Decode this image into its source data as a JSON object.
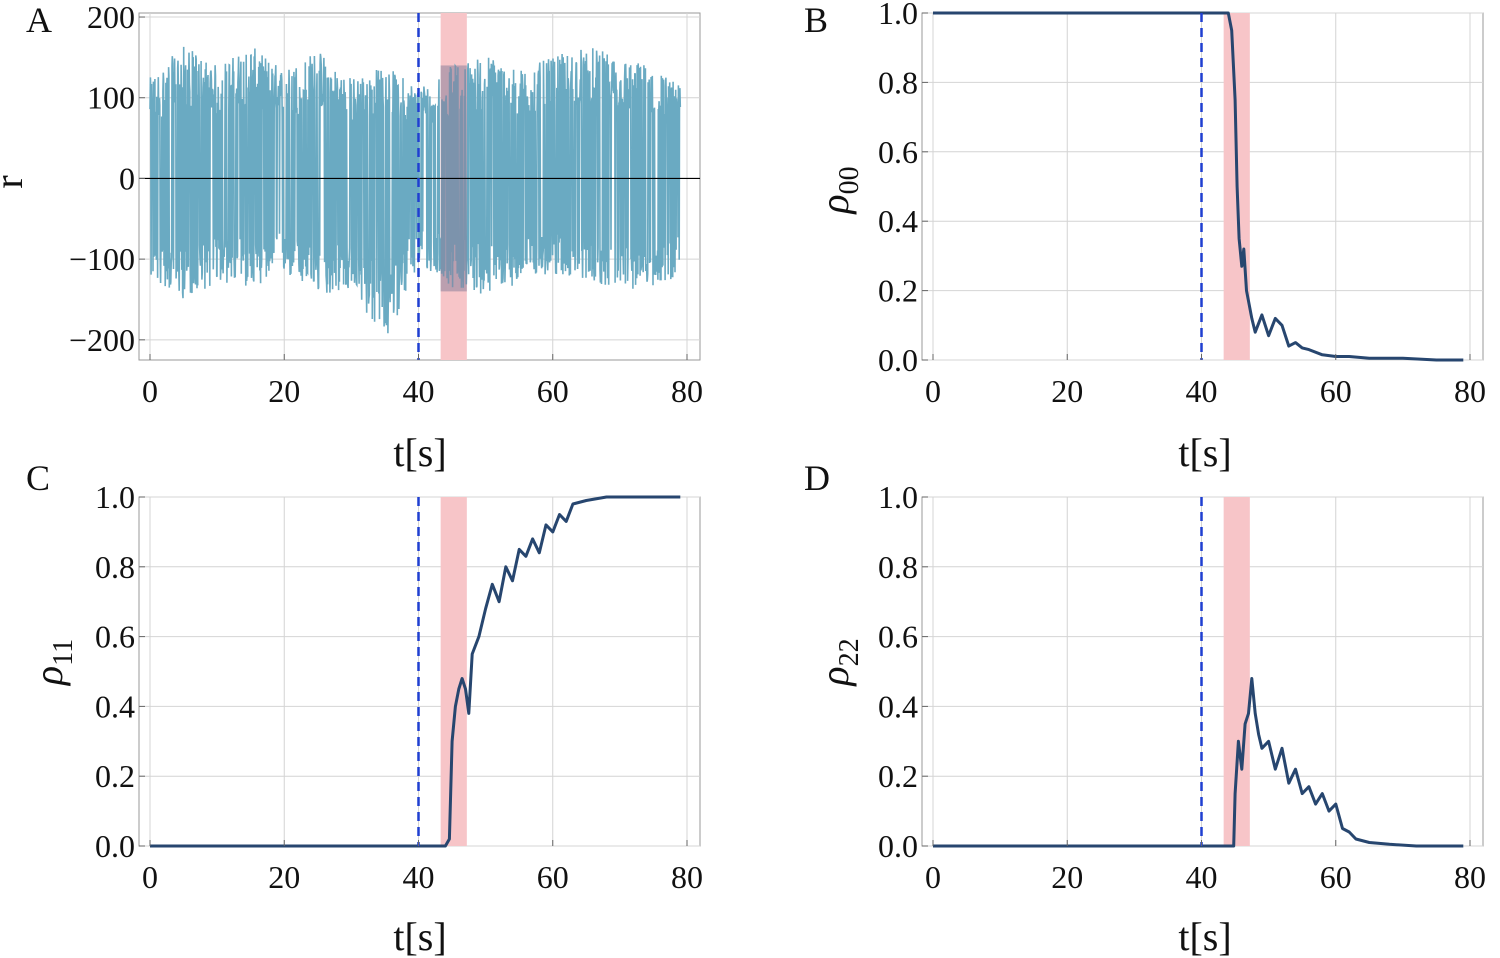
{
  "colors": {
    "signal": "#6aaac2",
    "density": "#27466f",
    "marker": "#1f3fd1",
    "band": "#f7c5c8",
    "grid": "#d4d4d4",
    "frame": "#9a9a9a"
  },
  "chart_data": [
    {
      "panel": "A",
      "type": "line",
      "ylabel": "r",
      "xlabel": "t[s]",
      "xlim": [
        0,
        80
      ],
      "ylim": [
        -225,
        205
      ],
      "x_ticks": [
        0,
        20,
        40,
        60,
        80
      ],
      "y_ticks": [
        -200,
        -100,
        0,
        100,
        200
      ],
      "y_tick_labels": [
        "−200",
        "−100",
        "0",
        "100",
        "200"
      ],
      "grid": true,
      "zero_line": true,
      "marker_time": 40,
      "band": [
        43.3,
        47.2
      ],
      "series": [
        {
          "kind": "noise-envelope",
          "x": [
            0,
            5,
            10,
            15,
            20,
            25,
            30,
            35,
            40,
            45,
            50,
            55,
            60,
            65,
            70,
            75,
            79
          ],
          "upper": [
            125,
            165,
            140,
            165,
            135,
            160,
            125,
            140,
            115,
            140,
            155,
            135,
            150,
            165,
            150,
            140,
            115
          ],
          "lower": [
            -125,
            -150,
            -130,
            -135,
            -120,
            -145,
            -140,
            -205,
            -110,
            -135,
            -145,
            -130,
            -120,
            -125,
            -140,
            -135,
            -120
          ]
        }
      ]
    },
    {
      "panel": "B",
      "type": "line",
      "ylabel": "ρ",
      "ylabel_sub": "00",
      "xlabel": "t[s]",
      "xlim": [
        0,
        80
      ],
      "ylim": [
        0,
        1
      ],
      "x_ticks": [
        0,
        20,
        40,
        60,
        80
      ],
      "y_ticks": [
        0,
        0.2,
        0.4,
        0.6,
        0.8,
        1.0
      ],
      "y_tick_labels": [
        "0.0",
        "0.2",
        "0.4",
        "0.6",
        "0.8",
        "1.0"
      ],
      "grid": true,
      "marker_time": 40,
      "band": [
        43.3,
        47.2
      ],
      "series": [
        {
          "x": [
            0,
            40,
            43,
            44,
            44.5,
            45,
            45.3,
            45.6,
            46,
            46.3,
            46.7,
            47,
            47.5,
            48,
            49,
            50,
            51,
            52,
            53,
            54,
            55,
            56,
            58,
            60,
            62,
            65,
            70,
            75,
            79
          ],
          "y": [
            1.0,
            1.0,
            1.0,
            1.0,
            0.95,
            0.75,
            0.5,
            0.35,
            0.27,
            0.32,
            0.2,
            0.17,
            0.12,
            0.08,
            0.13,
            0.07,
            0.12,
            0.1,
            0.04,
            0.05,
            0.035,
            0.03,
            0.015,
            0.01,
            0.01,
            0.005,
            0.005,
            0.0,
            0.0
          ]
        }
      ]
    },
    {
      "panel": "C",
      "type": "line",
      "ylabel": "ρ",
      "ylabel_sub": "11",
      "xlabel": "t[s]",
      "xlim": [
        0,
        80
      ],
      "ylim": [
        0,
        1
      ],
      "x_ticks": [
        0,
        20,
        40,
        60,
        80
      ],
      "y_ticks": [
        0,
        0.2,
        0.4,
        0.6,
        0.8,
        1.0
      ],
      "y_tick_labels": [
        "0.0",
        "0.2",
        "0.4",
        "0.6",
        "0.8",
        "1.0"
      ],
      "grid": true,
      "marker_time": 40,
      "band": [
        43.3,
        47.2
      ],
      "series": [
        {
          "x": [
            0,
            40,
            44,
            44.6,
            45,
            45.5,
            46,
            46.5,
            47,
            47.5,
            48,
            49,
            50,
            51,
            52,
            53,
            54,
            55,
            56,
            57,
            58,
            59,
            60,
            61,
            62,
            63,
            65,
            68,
            72,
            76,
            79
          ],
          "y": [
            0.0,
            0.0,
            0.0,
            0.02,
            0.3,
            0.4,
            0.45,
            0.48,
            0.45,
            0.38,
            0.55,
            0.6,
            0.68,
            0.75,
            0.7,
            0.8,
            0.76,
            0.85,
            0.83,
            0.88,
            0.84,
            0.92,
            0.9,
            0.95,
            0.93,
            0.98,
            0.99,
            1.0,
            1.0,
            1.0,
            1.0
          ]
        }
      ]
    },
    {
      "panel": "D",
      "type": "line",
      "ylabel": "ρ",
      "ylabel_sub": "22",
      "xlabel": "t[s]",
      "xlim": [
        0,
        80
      ],
      "ylim": [
        0,
        1
      ],
      "x_ticks": [
        0,
        20,
        40,
        60,
        80
      ],
      "y_ticks": [
        0,
        0.2,
        0.4,
        0.6,
        0.8,
        1.0
      ],
      "y_tick_labels": [
        "0.0",
        "0.2",
        "0.4",
        "0.6",
        "0.8",
        "1.0"
      ],
      "grid": true,
      "marker_time": 40,
      "band": [
        43.3,
        47.2
      ],
      "series": [
        {
          "x": [
            0,
            40,
            44.8,
            45,
            45.5,
            46,
            46.5,
            47,
            47.5,
            48,
            48.5,
            49,
            50,
            51,
            52,
            53,
            54,
            55,
            56,
            57,
            58,
            59,
            60,
            61,
            62,
            63,
            65,
            68,
            72,
            76,
            79
          ],
          "y": [
            0.0,
            0.0,
            0.0,
            0.15,
            0.3,
            0.22,
            0.35,
            0.38,
            0.48,
            0.38,
            0.32,
            0.28,
            0.3,
            0.22,
            0.28,
            0.18,
            0.22,
            0.15,
            0.17,
            0.12,
            0.15,
            0.1,
            0.12,
            0.05,
            0.04,
            0.02,
            0.01,
            0.005,
            0.0,
            0.0,
            0.0
          ]
        }
      ]
    }
  ]
}
